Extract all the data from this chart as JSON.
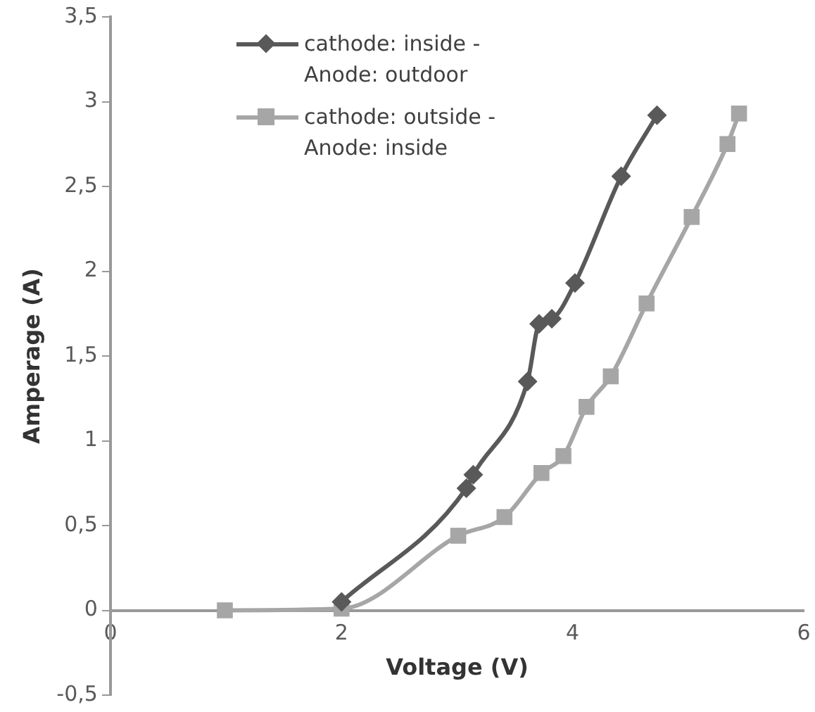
{
  "chart_data": {
    "type": "line",
    "xlabel": "Voltage (V)",
    "ylabel": "Amperage (A)",
    "xlim": [
      0,
      6
    ],
    "xticks": [
      0,
      2,
      4,
      6
    ],
    "ylim": [
      -0.5,
      3.5
    ],
    "yticks": [
      {
        "value": -0.5,
        "label": "-0,5"
      },
      0,
      {
        "value": 0.5,
        "label": "0,5"
      },
      1,
      {
        "value": 1.5,
        "label": "1,5"
      },
      2,
      {
        "value": 2.5,
        "label": "2,5"
      },
      3,
      {
        "value": 3.5,
        "label": "3,5"
      }
    ],
    "grid": false,
    "legend": "top left",
    "series": [
      {
        "name": "cathode: inside - Anode: outdoor",
        "color": "#595959",
        "marker": "diamond",
        "x": [
          2.0,
          3.08,
          3.14,
          3.61,
          3.71,
          3.82,
          4.02,
          4.42,
          4.73
        ],
        "values": [
          0.05,
          0.72,
          0.8,
          1.35,
          1.69,
          1.72,
          1.93,
          2.56,
          2.92
        ]
      },
      {
        "name": "cathode: outside - Anode: inside",
        "color": "#a6a6a6",
        "marker": "square",
        "x": [
          0.99,
          2.0,
          3.01,
          3.41,
          3.73,
          3.92,
          4.12,
          4.33,
          4.64,
          5.03,
          5.34,
          5.44
        ],
        "values": [
          0,
          0.01,
          0.44,
          0.55,
          0.81,
          0.91,
          1.2,
          1.38,
          1.81,
          2.32,
          2.75,
          2.93
        ]
      }
    ]
  }
}
